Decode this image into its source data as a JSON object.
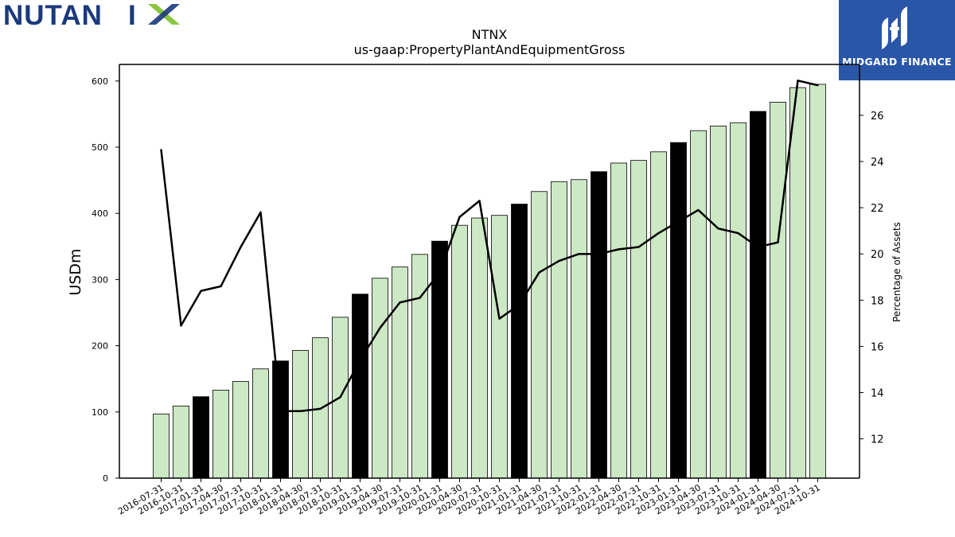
{
  "branding": {
    "company_logo_text": "NUTANIX",
    "publisher_logo_text": "MIDGARD FINANCE"
  },
  "chart_data": {
    "type": "bar",
    "title": "NTNX",
    "subtitle": "us-gaap:PropertyPlantAndEquipmentGross",
    "ylabel": "USDm",
    "ylabel_right": "Percentage of Assets",
    "ylim": [
      0,
      625
    ],
    "ylim_right": [
      10.3,
      28.2
    ],
    "yticks": [
      0,
      100,
      200,
      300,
      400,
      500,
      600
    ],
    "yticks_right": [
      12,
      14,
      16,
      18,
      20,
      22,
      24,
      26
    ],
    "grid": false,
    "categories": [
      "2016-07-31",
      "2016-10-31",
      "2017-01-31",
      "2017-04-30",
      "2017-07-31",
      "2017-10-31",
      "2018-01-31",
      "2018-04-30",
      "2018-07-31",
      "2018-10-31",
      "2019-01-31",
      "2019-04-30",
      "2019-07-31",
      "2019-10-31",
      "2020-01-31",
      "2020-04-30",
      "2020-07-31",
      "2020-10-31",
      "2021-01-31",
      "2021-04-30",
      "2021-07-31",
      "2021-10-31",
      "2022-01-31",
      "2022-04-30",
      "2022-07-31",
      "2022-10-31",
      "2023-01-31",
      "2023-04-30",
      "2023-07-31",
      "2023-10-31",
      "2024-01-31",
      "2024-04-30",
      "2024-07-31",
      "2024-10-31"
    ],
    "series": [
      {
        "kind": "bar",
        "axis": "left",
        "values": [
          97,
          109,
          123,
          133,
          146,
          165,
          177,
          193,
          212,
          243,
          278,
          302,
          319,
          338,
          358,
          382,
          393,
          397,
          414,
          433,
          448,
          451,
          463,
          476,
          480,
          493,
          507,
          525,
          532,
          537,
          554,
          568,
          590,
          595
        ],
        "highlight_indices": [
          2,
          6,
          10,
          14,
          18,
          22,
          26,
          30
        ],
        "color": "#cce8c4",
        "highlight_color": "#000000"
      },
      {
        "kind": "line",
        "axis": "right",
        "values": [
          24.5,
          16.9,
          18.4,
          18.6,
          20.3,
          21.8,
          13.2,
          13.2,
          13.3,
          13.8,
          15.4,
          16.8,
          17.9,
          18.1,
          19.2,
          21.6,
          22.3,
          17.2,
          17.8,
          19.2,
          19.7,
          20.0,
          20.0,
          20.2,
          20.3,
          20.9,
          21.4,
          21.9,
          21.1,
          20.9,
          20.3,
          20.5,
          27.5,
          27.3
        ],
        "color": "#000000"
      }
    ]
  }
}
